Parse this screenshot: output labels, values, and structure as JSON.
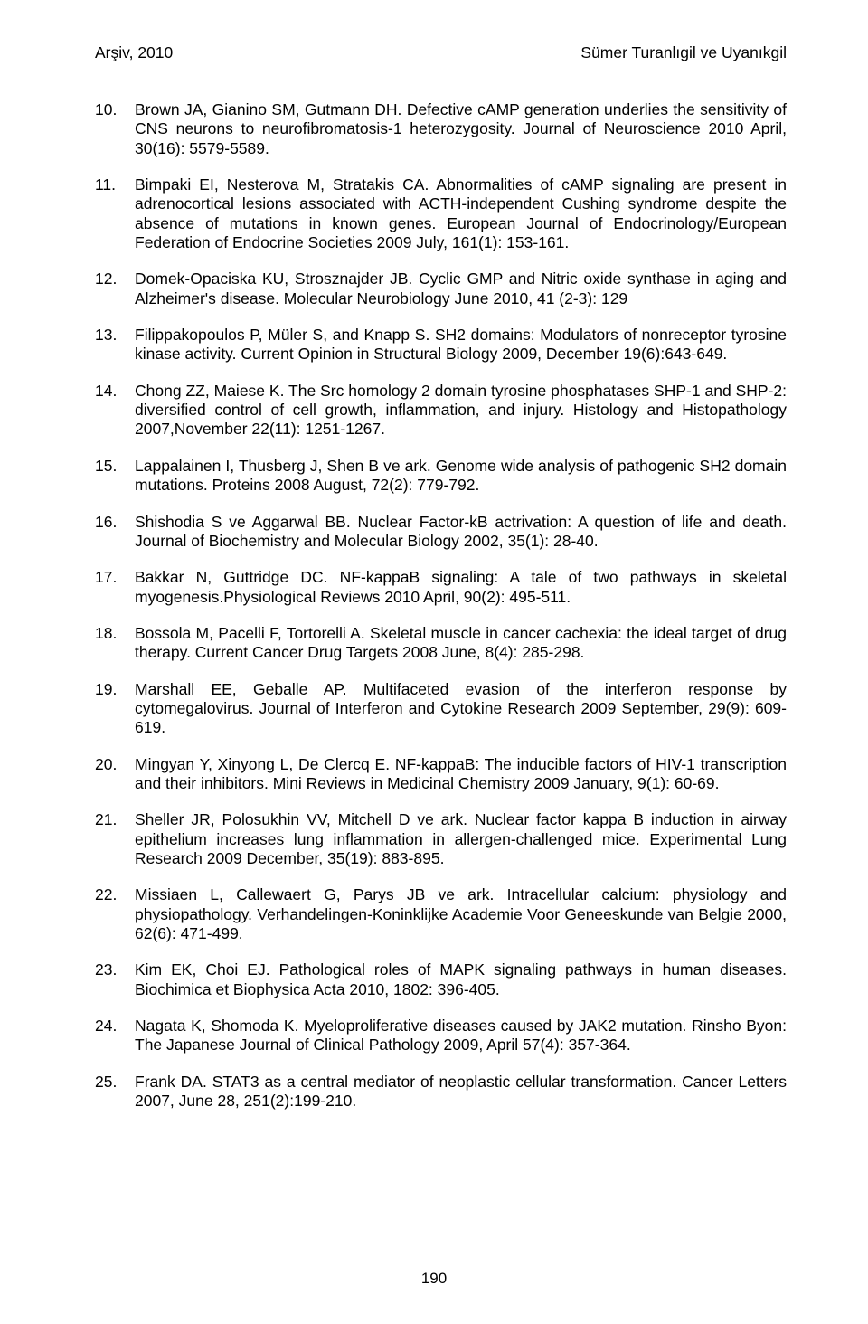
{
  "header": {
    "left": "Arşiv, 2010",
    "right": "Sümer Turanlıgil ve Uyanıkgil"
  },
  "refs": [
    {
      "n": "10.",
      "t": "Brown JA, Gianino SM, Gutmann DH. Defective cAMP generation underlies the sensitivity of CNS neurons to neurofibromatosis-1 heterozygosity. Journal of Neuroscience 2010 April, 30(16): 5579-5589."
    },
    {
      "n": "11.",
      "t": "Bimpaki EI, Nesterova M, Stratakis CA. Abnormalities of cAMP signaling are present in adrenocortical lesions associated with ACTH-independent Cushing syndrome despite the absence of mutations in known genes. European Journal of Endocrinology/European Federation of Endocrine Societies 2009 July, 161(1): 153-161."
    },
    {
      "n": "12.",
      "t": "Domek-Opaciska KU, Strosznajder JB. Cyclic GMP and Nitric oxide synthase in aging and Alzheimer's disease. Molecular Neurobiology June 2010, 41 (2-3): 129"
    },
    {
      "n": "13.",
      "t": "Filippakopoulos P, Müler S, and Knapp S. SH2 domains: Modulators of nonreceptor tyrosine kinase activity. Current Opinion in Structural Biology 2009, December 19(6):643-649."
    },
    {
      "n": "14.",
      "t": "Chong ZZ, Maiese K. The Src homology 2 domain tyrosine phosphatases SHP-1 and SHP-2: diversified control of cell growth, inflammation, and injury. Histology and Histopathology 2007,November 22(11): 1251-1267."
    },
    {
      "n": "15.",
      "t": "Lappalainen I, Thusberg J, Shen B ve ark. Genome wide analysis of pathogenic SH2 domain mutations. Proteins 2008 August, 72(2): 779-792."
    },
    {
      "n": "16.",
      "t": "Shishodia S ve Aggarwal BB. Nuclear Factor-kB actrivation: A question of life and death. Journal of Biochemistry and Molecular Biology 2002, 35(1): 28-40."
    },
    {
      "n": "17.",
      "t": "Bakkar N, Guttridge DC. NF-kappaB signaling: A tale of two pathways in skeletal myogenesis.Physiological Reviews 2010 April, 90(2): 495-511."
    },
    {
      "n": "18.",
      "t": "Bossola M, Pacelli F, Tortorelli A. Skeletal muscle in cancer cachexia: the ideal target of drug therapy. Current Cancer Drug Targets 2008 June, 8(4): 285-298."
    },
    {
      "n": "19.",
      "t": "Marshall EE, Geballe AP. Multifaceted evasion of the interferon response by cytomegalovirus. Journal of Interferon and Cytokine Research 2009 September, 29(9): 609-619."
    },
    {
      "n": "20.",
      "t": "Mingyan Y, Xinyong L, De Clercq E. NF-kappaB: The inducible factors of HIV-1 transcription and their inhibitors. Mini Reviews in Medicinal Chemistry 2009 January, 9(1): 60-69."
    },
    {
      "n": "21.",
      "t": "Sheller JR, Polosukhin VV, Mitchell D ve ark. Nuclear factor kappa B induction in airway epithelium increases lung inflammation in allergen-challenged mice. Experimental Lung Research 2009 December, 35(19): 883-895."
    },
    {
      "n": "22.",
      "t": "Missiaen L, Callewaert G, Parys JB ve ark. Intracellular calcium: physiology and physiopathology. Verhandelingen-Koninklijke Academie Voor Geneeskunde van Belgie 2000, 62(6): 471-499."
    },
    {
      "n": "23.",
      "t": "Kim EK, Choi EJ. Pathological roles of MAPK signaling pathways in human diseases. Biochimica et Biophysica Acta 2010, 1802: 396-405."
    },
    {
      "n": "24.",
      "t": "Nagata K, Shomoda K. Myeloproliferative diseases caused by JAK2 mutation. Rinsho Byon: The Japanese Journal of Clinical Pathology 2009, April 57(4): 357-364."
    },
    {
      "n": "25.",
      "t": "Frank DA. STAT3 as a central mediator of neoplastic cellular transformation. Cancer Letters 2007, June 28, 251(2):199-210."
    }
  ],
  "pageNumber": "190"
}
